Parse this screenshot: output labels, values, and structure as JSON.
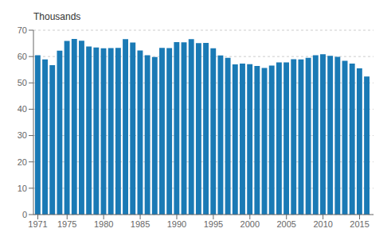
{
  "chart_data": {
    "type": "bar",
    "ylabel": "Thousands",
    "x": [
      1971,
      1972,
      1973,
      1974,
      1975,
      1976,
      1977,
      1978,
      1979,
      1980,
      1981,
      1982,
      1983,
      1984,
      1985,
      1986,
      1987,
      1988,
      1989,
      1990,
      1991,
      1992,
      1993,
      1994,
      1995,
      1996,
      1997,
      1998,
      1999,
      2000,
      2001,
      2002,
      2003,
      2004,
      2005,
      2006,
      2007,
      2008,
      2009,
      2010,
      2011,
      2012,
      2013,
      2014,
      2015,
      2016
    ],
    "values": [
      60.5,
      58.9,
      56.7,
      62.2,
      65.9,
      66.7,
      66.0,
      63.8,
      63.4,
      63.1,
      63.2,
      63.3,
      66.6,
      65.3,
      62.3,
      60.5,
      59.8,
      63.3,
      63.2,
      65.5,
      65.4,
      66.6,
      65.1,
      65.2,
      63.1,
      60.4,
      59.5,
      57.0,
      57.3,
      57.1,
      56.4,
      55.7,
      56.6,
      57.8,
      57.8,
      59.0,
      58.9,
      59.5,
      60.5,
      60.9,
      60.3,
      59.9,
      58.4,
      57.3,
      55.5,
      52.4
    ],
    "color": "#1a7ab5",
    "xlim": [
      1970.4,
      2016.9
    ],
    "ylim": [
      0,
      70
    ],
    "xticks": [
      1971,
      1975,
      1980,
      1985,
      1990,
      1995,
      2000,
      2005,
      2010,
      2015
    ],
    "yticks": [
      0,
      10,
      20,
      30,
      40,
      50,
      60,
      70
    ],
    "grid": "y"
  }
}
